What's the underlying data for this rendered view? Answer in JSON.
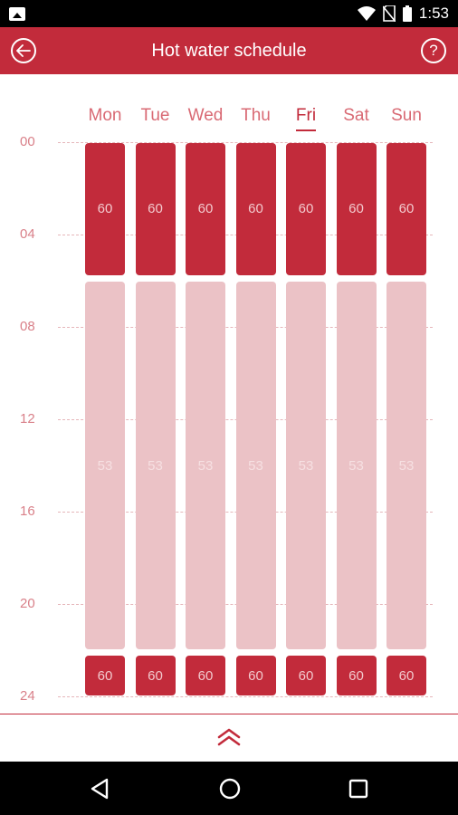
{
  "status_bar": {
    "time": "1:53",
    "icons": [
      "gallery-icon",
      "wifi-icon",
      "no-sim-icon",
      "battery-icon"
    ]
  },
  "app_bar": {
    "title": "Hot water schedule",
    "back_icon": "arrow-left-icon",
    "help_icon": "help-icon",
    "help_label": "?"
  },
  "schedule": {
    "days": [
      {
        "label": "Mon",
        "active": false
      },
      {
        "label": "Tue",
        "active": false
      },
      {
        "label": "Wed",
        "active": false
      },
      {
        "label": "Thu",
        "active": false
      },
      {
        "label": "Fri",
        "active": true
      },
      {
        "label": "Sat",
        "active": false
      },
      {
        "label": "Sun",
        "active": false
      }
    ],
    "hours": [
      "00",
      "04",
      "08",
      "12",
      "16",
      "20",
      "24"
    ],
    "periods": [
      {
        "start": 0,
        "end": 5.8,
        "temp": "60",
        "level": "high"
      },
      {
        "start": 6.0,
        "end": 22.0,
        "temp": "53",
        "level": "low"
      },
      {
        "start": 22.2,
        "end": 24,
        "temp": "60",
        "level": "high"
      }
    ],
    "colors": {
      "high": "#c22b3b",
      "low": "#ebc2c6"
    }
  },
  "bottom_panel": {
    "expand_icon": "double-chevron-up-icon"
  },
  "nav_bar": {
    "icons": [
      "back-triangle-icon",
      "home-circle-icon",
      "recents-square-icon"
    ]
  }
}
